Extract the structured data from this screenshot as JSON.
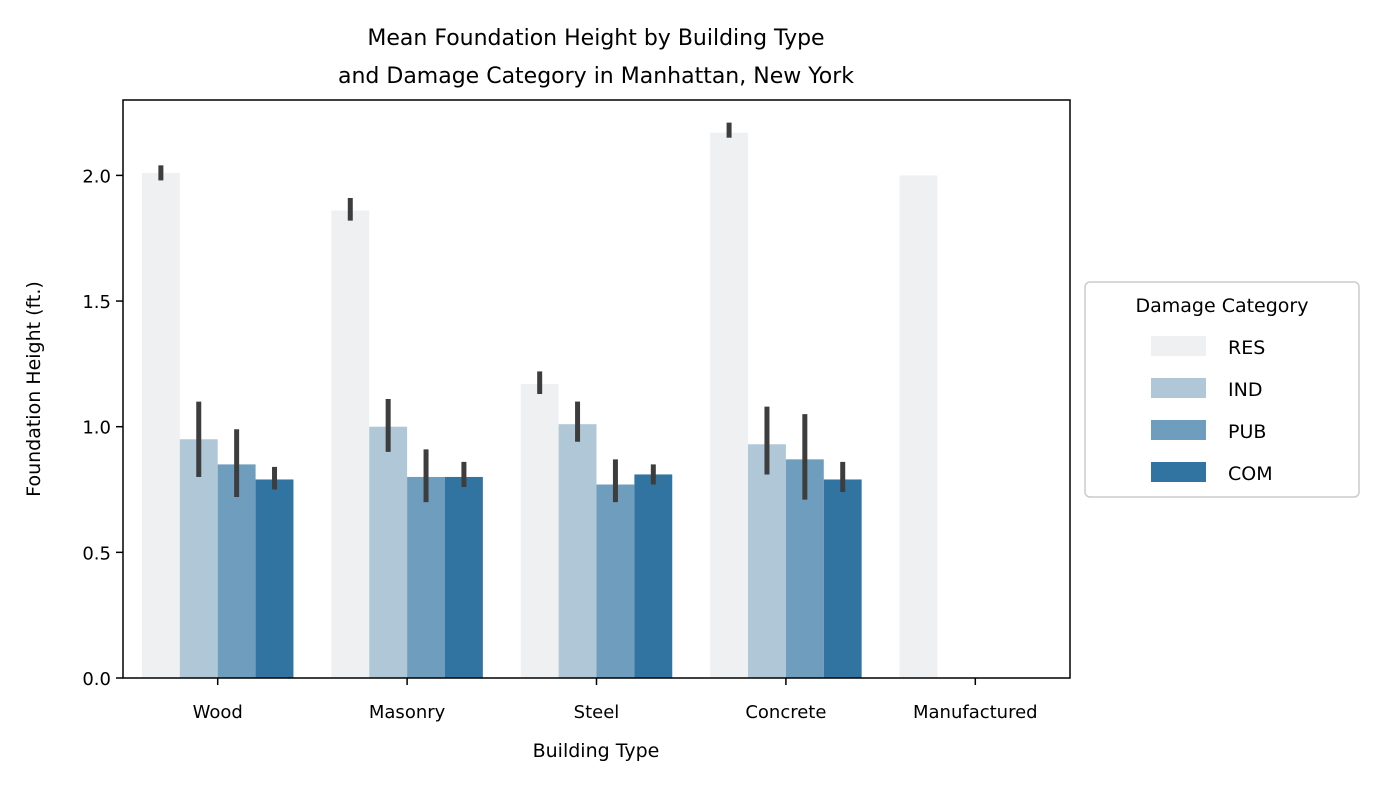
{
  "chart_data": {
    "type": "bar",
    "title_line1": "Mean Foundation Height by Building Type",
    "title_line2": "and Damage Category in Manhattan, New York",
    "xlabel": "Building Type",
    "ylabel": "Foundation Height (ft.)",
    "ylim": [
      0,
      2.3
    ],
    "yticks": [
      0.0,
      0.5,
      1.0,
      1.5,
      2.0
    ],
    "ytick_labels": [
      "0.0",
      "0.5",
      "1.0",
      "1.5",
      "2.0"
    ],
    "categories": [
      "Wood",
      "Masonry",
      "Steel",
      "Concrete",
      "Manufactured"
    ],
    "grid": false,
    "legend": {
      "title": "Damage Category",
      "placement": "center-right outside"
    },
    "series": [
      {
        "name": "RES",
        "color": "#eff0f2",
        "values": [
          2.01,
          1.86,
          1.17,
          2.17,
          2.0
        ],
        "err_low": [
          1.98,
          1.82,
          1.13,
          2.15,
          null
        ],
        "err_high": [
          2.04,
          1.91,
          1.22,
          2.21,
          null
        ]
      },
      {
        "name": "IND",
        "color": "#b0c7d8",
        "values": [
          0.95,
          1.0,
          1.01,
          0.93,
          null
        ],
        "err_low": [
          0.8,
          0.9,
          0.94,
          0.81,
          null
        ],
        "err_high": [
          1.1,
          1.11,
          1.1,
          1.08,
          null
        ]
      },
      {
        "name": "PUB",
        "color": "#6f9dbd",
        "values": [
          0.85,
          0.8,
          0.77,
          0.87,
          null
        ],
        "err_low": [
          0.72,
          0.7,
          0.7,
          0.71,
          null
        ],
        "err_high": [
          0.99,
          0.91,
          0.87,
          1.05,
          null
        ]
      },
      {
        "name": "COM",
        "color": "#3274a1",
        "values": [
          0.79,
          0.8,
          0.81,
          0.79,
          null
        ],
        "err_low": [
          0.75,
          0.76,
          0.77,
          0.74,
          null
        ],
        "err_high": [
          0.84,
          0.86,
          0.85,
          0.86,
          null
        ]
      }
    ],
    "errbar_color": "#3d3d3d"
  }
}
